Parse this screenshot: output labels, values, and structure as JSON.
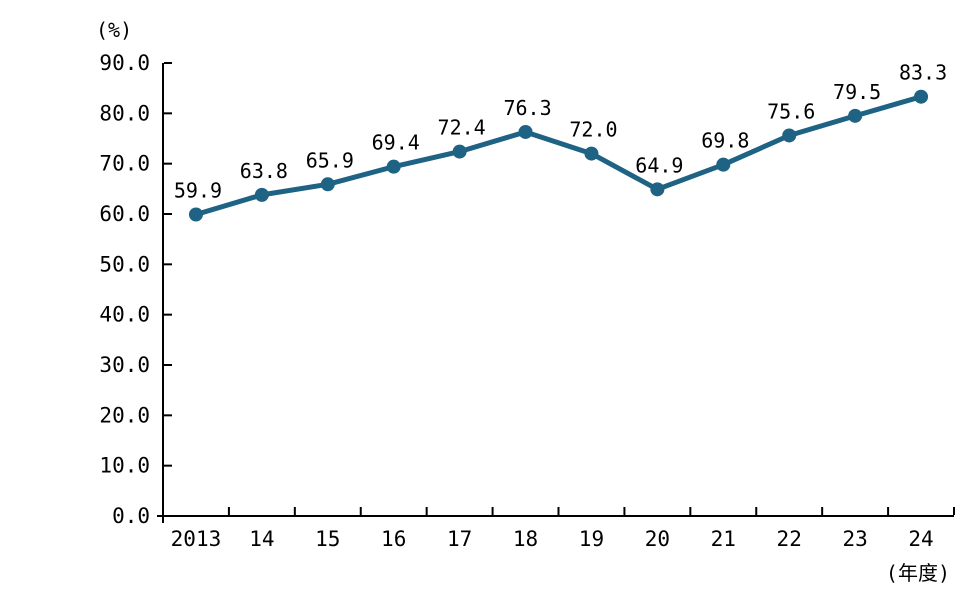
{
  "chart": {
    "y_unit": "(%)",
    "x_unit": "(年度)"
  },
  "chart_data": {
    "type": "line",
    "title": "",
    "categories": [
      "2013",
      "14",
      "15",
      "16",
      "17",
      "18",
      "19",
      "20",
      "21",
      "22",
      "23",
      "24"
    ],
    "values": [
      59.9,
      63.8,
      65.9,
      69.4,
      72.4,
      76.3,
      72.0,
      64.9,
      69.8,
      75.6,
      79.5,
      83.3
    ],
    "point_labels": [
      "59.9",
      "63.8",
      "65.9",
      "69.4",
      "72.4",
      "76.3",
      "72.0",
      "64.9",
      "69.8",
      "75.6",
      "79.5",
      "83.3"
    ],
    "series_name": "",
    "xlabel": "(年度)",
    "ylabel": "(%)",
    "ylim": [
      0,
      90
    ],
    "y_ticks": [
      {
        "value": 0,
        "label": "0.0"
      },
      {
        "value": 10,
        "label": "10.0"
      },
      {
        "value": 20,
        "label": "20.0"
      },
      {
        "value": 30,
        "label": "30.0"
      },
      {
        "value": 40,
        "label": "40.0"
      },
      {
        "value": 50,
        "label": "50.0"
      },
      {
        "value": 60,
        "label": "60.0"
      },
      {
        "value": 70,
        "label": "70.0"
      },
      {
        "value": 80,
        "label": "80.0"
      },
      {
        "value": 90,
        "label": "90.0"
      }
    ],
    "grid": false,
    "legend_position": "none",
    "line_color": "#1E6284",
    "marker_color": "#1E6284",
    "axis_color": "#000000",
    "text_color": "#000000"
  }
}
